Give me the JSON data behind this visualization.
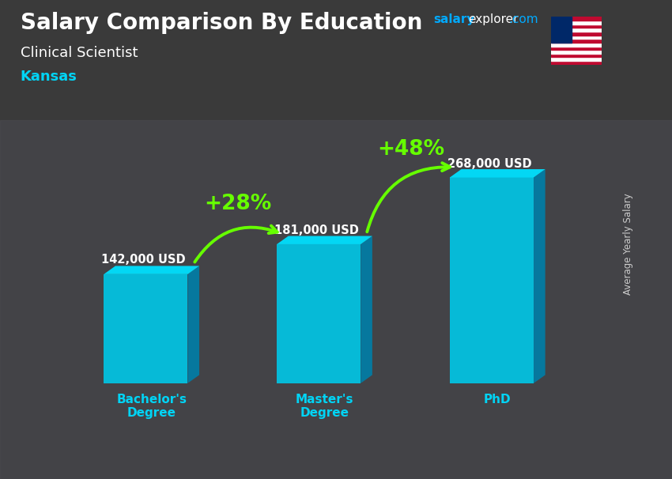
{
  "title": "Salary Comparison By Education",
  "subtitle": "Clinical Scientist",
  "location": "Kansas",
  "categories": [
    "Bachelor's\nDegree",
    "Master's\nDegree",
    "PhD"
  ],
  "values": [
    142000,
    181000,
    268000
  ],
  "labels": [
    "142,000 USD",
    "181,000 USD",
    "268,000 USD"
  ],
  "increases": [
    "+28%",
    "+48%"
  ],
  "bar_color_front": "#00c8e8",
  "bar_color_side": "#007fa8",
  "bar_color_top": "#00e0ff",
  "arrow_color": "#66ff00",
  "title_color": "#ffffff",
  "subtitle_color": "#ffffff",
  "location_color": "#00d4f5",
  "label_color": "#ffffff",
  "category_color": "#00d4f5",
  "watermark_salary_color": "#00aaff",
  "watermark_explorer_color": "#ffffff",
  "watermark_com_color": "#00aaff",
  "bg_color": "#4a4a4a",
  "ylabel_text": "Average Yearly Salary",
  "ylabel_color": "#cccccc",
  "figsize": [
    8.5,
    6.06
  ],
  "dpi": 100
}
